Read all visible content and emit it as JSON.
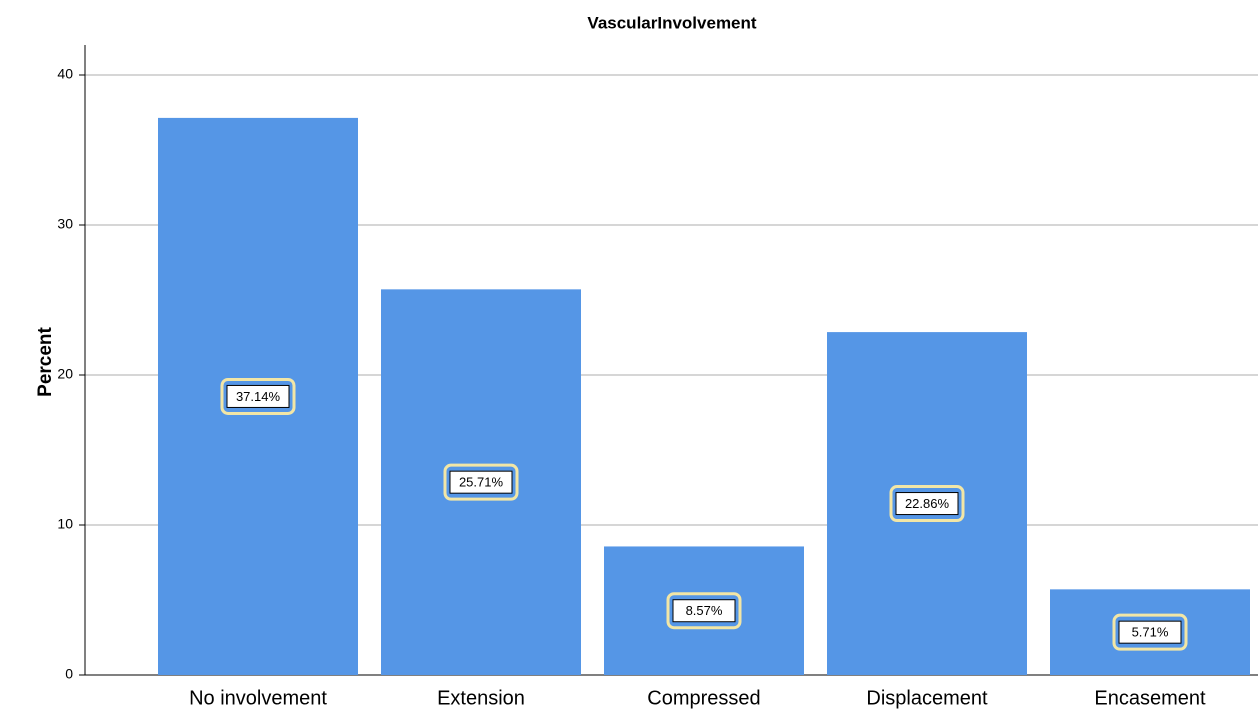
{
  "chart_data": {
    "type": "bar",
    "title": "VascularInvolvement",
    "y_label": "Percent",
    "categories": [
      "No involvement",
      "Extension",
      "Compressed",
      "Displacement",
      "Encasement"
    ],
    "values": [
      37.14,
      25.71,
      8.57,
      22.86,
      5.71
    ],
    "value_labels": [
      "37.14%",
      "25.71%",
      "8.57%",
      "22.86%",
      "5.71%"
    ],
    "color": "#5596e6",
    "ylim": [
      0,
      40
    ],
    "yticks": [
      0,
      10,
      20,
      30,
      40
    ],
    "grid": true
  }
}
